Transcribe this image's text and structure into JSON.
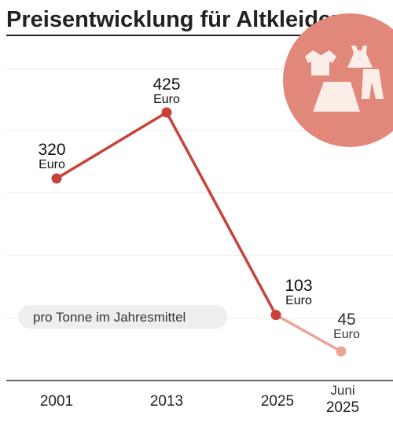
{
  "chart_data": {
    "type": "line",
    "title": "Preisentwicklung für Altkleider",
    "note": "pro Tonne im Jahresmittel",
    "unit": "Euro",
    "x": [
      "2001",
      "2013",
      "2025",
      "Juni 2025"
    ],
    "x_tick_labels": [
      [
        "2001"
      ],
      [
        "2013"
      ],
      [
        "2025"
      ],
      [
        "Juni",
        "2025"
      ]
    ],
    "values": [
      320,
      425,
      103,
      45
    ],
    "value_labels": [
      "320",
      "425",
      "103",
      "45"
    ],
    "highlighted_last_point": true,
    "grid": true,
    "ylim": [
      0,
      500
    ]
  },
  "colors": {
    "line": "#c8423b",
    "line_light": "#e8a595",
    "badge": "#e1887a",
    "badge_icons": "#fbeee9",
    "grid": "#e8e8e8",
    "pill": "#eeeeee"
  },
  "icons": [
    "tshirt-icon",
    "dress-icon",
    "skirt-icon",
    "trousers-icon"
  ]
}
